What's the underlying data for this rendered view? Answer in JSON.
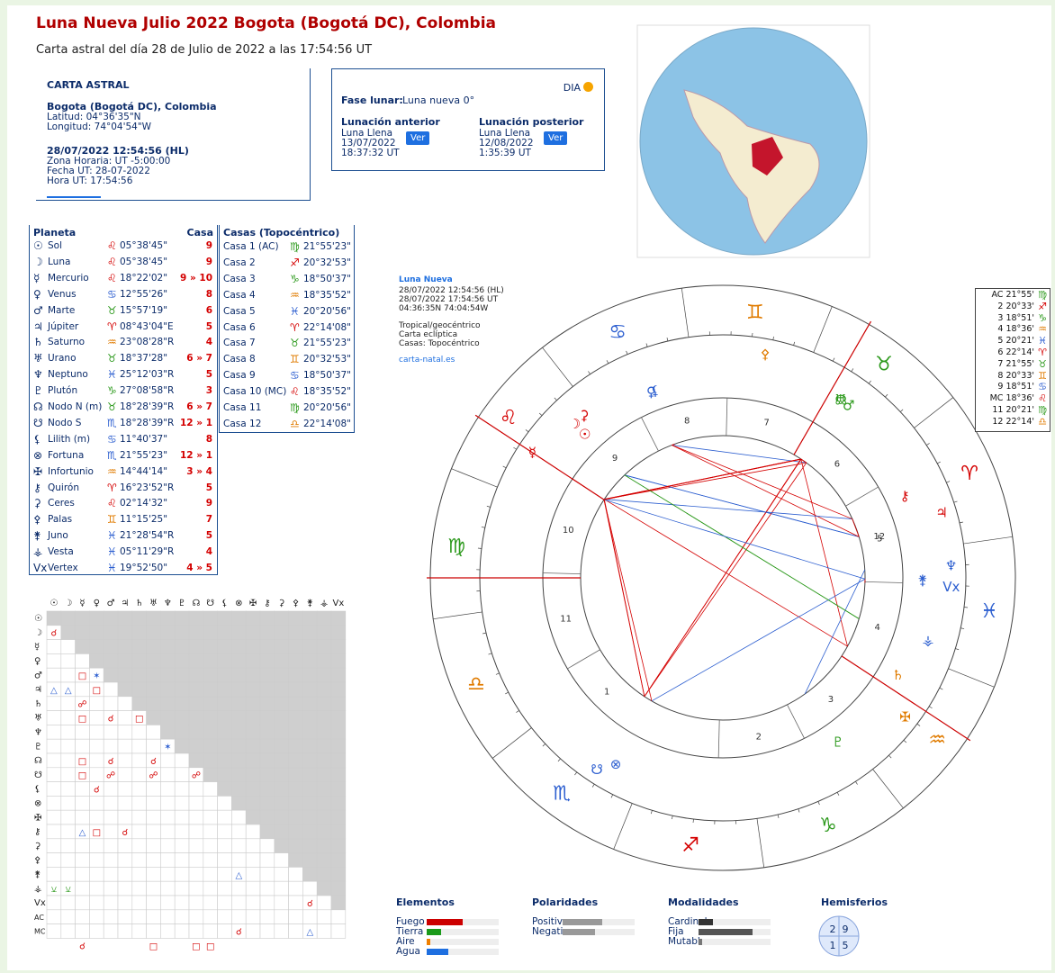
{
  "header": {
    "title": "Luna Nueva Julio 2022 Bogota (Bogotá DC), Colombia",
    "subtitle": "Carta astral del día 28 de Julio de 2022 a las 17:54:56 UT"
  },
  "carta": {
    "heading": "CARTA ASTRAL",
    "place": "Bogota (Bogotá DC), Colombia",
    "coords": [
      "Latitud: 04°36'35\"N",
      "Longitud: 74°04'54\"W"
    ],
    "datetime": "28/07/2022 12:54:56 (HL)",
    "details": [
      "Zona Horaria: UT -5:00:00",
      "Fecha UT: 28-07-2022",
      "Hora UT: 17:54:56"
    ]
  },
  "fase": {
    "day": "DIA",
    "label": "Fase lunar:",
    "value": "Luna nueva 0°",
    "anterior": {
      "title": "Lunación anterior",
      "lines": [
        "Luna Llena",
        "13/07/2022",
        "18:37:32 UT"
      ],
      "button": "Ver"
    },
    "posterior": {
      "title": "Lunación posterior",
      "lines": [
        "Luna Llena",
        "12/08/2022",
        "1:35:39 UT"
      ],
      "button": "Ver"
    }
  },
  "zodiac": [
    {
      "glyph": "♈",
      "color": "#d40000"
    },
    {
      "glyph": "♉",
      "color": "#2e9a1e"
    },
    {
      "glyph": "♊",
      "color": "#e07b00"
    },
    {
      "glyph": "♋",
      "color": "#2d5fd0"
    },
    {
      "glyph": "♌",
      "color": "#d40000"
    },
    {
      "glyph": "♍",
      "color": "#2e9a1e"
    },
    {
      "glyph": "♎",
      "color": "#e07b00"
    },
    {
      "glyph": "♏",
      "color": "#2d5fd0"
    },
    {
      "glyph": "♐",
      "color": "#d40000"
    },
    {
      "glyph": "♑",
      "color": "#2e9a1e"
    },
    {
      "glyph": "♒",
      "color": "#e07b00"
    },
    {
      "glyph": "♓",
      "color": "#2d5fd0"
    }
  ],
  "planets": {
    "headers": [
      "Planeta",
      "Casa"
    ],
    "rows": [
      {
        "glyph": "☉",
        "name": "Sol",
        "sign": "♌",
        "pos": "05°38'45\"",
        "casa": "9"
      },
      {
        "glyph": "☽",
        "name": "Luna",
        "sign": "♌",
        "pos": "05°38'45\"",
        "casa": "9"
      },
      {
        "glyph": "☿",
        "name": "Mercurio",
        "sign": "♌",
        "pos": "18°22'02\"",
        "casa": "9 » 10"
      },
      {
        "glyph": "♀",
        "name": "Venus",
        "sign": "♋",
        "pos": "12°55'26\"",
        "casa": "8"
      },
      {
        "glyph": "♂",
        "name": "Marte",
        "sign": "♉",
        "pos": "15°57'19\"",
        "casa": "6"
      },
      {
        "glyph": "♃",
        "name": "Júpiter",
        "sign": "♈",
        "pos": "08°43'04\"E",
        "casa": "5"
      },
      {
        "glyph": "♄",
        "name": "Saturno",
        "sign": "♒",
        "pos": "23°08'28\"R",
        "casa": "4"
      },
      {
        "glyph": "♅",
        "name": "Urano",
        "sign": "♉",
        "pos": "18°37'28\"",
        "casa": "6 » 7"
      },
      {
        "glyph": "♆",
        "name": "Neptuno",
        "sign": "♓",
        "pos": "25°12'03\"R",
        "casa": "5"
      },
      {
        "glyph": "♇",
        "name": "Plutón",
        "sign": "♑",
        "pos": "27°08'58\"R",
        "casa": "3"
      },
      {
        "glyph": "☊",
        "name": "Nodo N (m)",
        "sign": "♉",
        "pos": "18°28'39\"R",
        "casa": "6 » 7"
      },
      {
        "glyph": "☋",
        "name": "Nodo S",
        "sign": "♏",
        "pos": "18°28'39\"R",
        "casa": "12 » 1"
      },
      {
        "glyph": "⚸",
        "name": "Lilith (m)",
        "sign": "♋",
        "pos": "11°40'37\"",
        "casa": "8"
      },
      {
        "glyph": "⊗",
        "name": "Fortuna",
        "sign": "♏",
        "pos": "21°55'23\"",
        "casa": "12 » 1"
      },
      {
        "glyph": "✠",
        "name": "Infortunio",
        "sign": "♒",
        "pos": "14°44'14\"",
        "casa": "3 » 4"
      },
      {
        "glyph": "⚷",
        "name": "Quirón",
        "sign": "♈",
        "pos": "16°23'52\"R",
        "casa": "5"
      },
      {
        "glyph": "⚳",
        "name": "Ceres",
        "sign": "♌",
        "pos": "02°14'32\"",
        "casa": "9"
      },
      {
        "glyph": "⚴",
        "name": "Palas",
        "sign": "♊",
        "pos": "11°15'25\"",
        "casa": "7"
      },
      {
        "glyph": "⚵",
        "name": "Juno",
        "sign": "♓",
        "pos": "21°28'54\"R",
        "casa": "5"
      },
      {
        "glyph": "⚶",
        "name": "Vesta",
        "sign": "♓",
        "pos": "05°11'29\"R",
        "casa": "4"
      },
      {
        "glyph": "Vx",
        "name": "Vertex",
        "sign": "♓",
        "pos": "19°52'50\"",
        "casa": "4 » 5"
      }
    ]
  },
  "houses": {
    "heading": "Casas (Topocéntrico)",
    "rows": [
      {
        "name": "Casa 1 (AC)",
        "sign": "♍",
        "pos": "21°55'23\""
      },
      {
        "name": "Casa 2",
        "sign": "♐",
        "pos": "20°32'53\""
      },
      {
        "name": "Casa 3",
        "sign": "♑",
        "pos": "18°50'37\""
      },
      {
        "name": "Casa 4",
        "sign": "♒",
        "pos": "18°35'52\""
      },
      {
        "name": "Casa 5",
        "sign": "♓",
        "pos": "20°20'56\""
      },
      {
        "name": "Casa 6",
        "sign": "♈",
        "pos": "22°14'08\""
      },
      {
        "name": "Casa 7",
        "sign": "♉",
        "pos": "21°55'23\""
      },
      {
        "name": "Casa 8",
        "sign": "♊",
        "pos": "20°32'53\""
      },
      {
        "name": "Casa 9",
        "sign": "♋",
        "pos": "18°50'37\""
      },
      {
        "name": "Casa 10 (MC)",
        "sign": "♌",
        "pos": "18°35'52\""
      },
      {
        "name": "Casa 11",
        "sign": "♍",
        "pos": "20°20'56\""
      },
      {
        "name": "Casa 12",
        "sign": "♎",
        "pos": "22°14'08\""
      }
    ]
  },
  "chart_info": {
    "title": "Luna Nueva",
    "lines": [
      "28/07/2022 12:54:56 (HL)",
      "28/07/2022 17:54:56 UT",
      "04:36:35N 74:04:54W"
    ],
    "lines2": [
      "Tropical/geocéntrico",
      "Carta eclíptica",
      "Casas: Topocéntrico"
    ],
    "link": "carta-natal.es"
  },
  "house_numbers": [
    1,
    2,
    3,
    4,
    5,
    6,
    7,
    8,
    9,
    10,
    11,
    12
  ],
  "cusp_list": [
    {
      "label": "AC 21°55'",
      "sign": "♍"
    },
    {
      "label": "2 20°33'",
      "sign": "♐"
    },
    {
      "label": "3 18°51'",
      "sign": "♑"
    },
    {
      "label": "4 18°36'",
      "sign": "♒"
    },
    {
      "label": "5 20°21'",
      "sign": "♓"
    },
    {
      "label": "6 22°14'",
      "sign": "♈"
    },
    {
      "label": "7 21°55'",
      "sign": "♉"
    },
    {
      "label": "8 20°33'",
      "sign": "♊"
    },
    {
      "label": "9 18°51'",
      "sign": "♋"
    },
    {
      "label": "MC 18°36'",
      "sign": "♌"
    },
    {
      "label": "11 20°21'",
      "sign": "♍"
    },
    {
      "label": "12 22°14'",
      "sign": "♎"
    }
  ],
  "aspects": {
    "extra_rows": [
      "AC",
      "MC"
    ],
    "cells": [
      {
        "row": 1,
        "col": 0,
        "symbol": "☌",
        "color": "#d40000"
      },
      {
        "row": 4,
        "col": 2,
        "symbol": "□",
        "color": "#d40000"
      },
      {
        "row": 4,
        "col": 3,
        "symbol": "✶",
        "color": "#2d5fd0"
      },
      {
        "row": 5,
        "col": 0,
        "symbol": "△",
        "color": "#2d5fd0"
      },
      {
        "row": 5,
        "col": 1,
        "symbol": "△",
        "color": "#2d5fd0"
      },
      {
        "row": 5,
        "col": 3,
        "symbol": "□",
        "color": "#d40000"
      },
      {
        "row": 6,
        "col": 2,
        "symbol": "☍",
        "color": "#d40000"
      },
      {
        "row": 7,
        "col": 2,
        "symbol": "□",
        "color": "#d40000"
      },
      {
        "row": 7,
        "col": 4,
        "symbol": "☌",
        "color": "#d40000"
      },
      {
        "row": 7,
        "col": 6,
        "symbol": "□",
        "color": "#d40000"
      },
      {
        "row": 9,
        "col": 8,
        "symbol": "✶",
        "color": "#2d5fd0"
      },
      {
        "row": 10,
        "col": 2,
        "symbol": "□",
        "color": "#d40000"
      },
      {
        "row": 10,
        "col": 4,
        "symbol": "☌",
        "color": "#d40000"
      },
      {
        "row": 10,
        "col": 7,
        "symbol": "☌",
        "color": "#d40000"
      },
      {
        "row": 11,
        "col": 2,
        "symbol": "□",
        "color": "#d40000"
      },
      {
        "row": 11,
        "col": 4,
        "symbol": "☍",
        "color": "#d40000"
      },
      {
        "row": 11,
        "col": 7,
        "symbol": "☍",
        "color": "#d40000"
      },
      {
        "row": 11,
        "col": 10,
        "symbol": "☍",
        "color": "#d40000"
      },
      {
        "row": 12,
        "col": 3,
        "symbol": "☌",
        "color": "#d40000"
      },
      {
        "row": 15,
        "col": 2,
        "symbol": "△",
        "color": "#2d5fd0"
      },
      {
        "row": 15,
        "col": 3,
        "symbol": "□",
        "color": "#d40000"
      },
      {
        "row": 15,
        "col": 5,
        "symbol": "☌",
        "color": "#d40000"
      },
      {
        "row": 18,
        "col": 13,
        "symbol": "△",
        "color": "#2d5fd0"
      },
      {
        "row": 19,
        "col": 0,
        "symbol": "⚺",
        "color": "#2e9a1e"
      },
      {
        "row": 19,
        "col": 1,
        "symbol": "⚺",
        "color": "#2e9a1e"
      },
      {
        "row": 20,
        "col": 18,
        "symbol": "☌",
        "color": "#d40000"
      },
      {
        "row": 22,
        "col": 13,
        "symbol": "☌",
        "color": "#d40000"
      },
      {
        "row": 22,
        "col": 18,
        "symbol": "△",
        "color": "#2d5fd0"
      },
      {
        "row": 23,
        "col": 2,
        "symbol": "☌",
        "color": "#d40000"
      },
      {
        "row": 23,
        "col": 7,
        "symbol": "□",
        "color": "#d40000"
      },
      {
        "row": 23,
        "col": 10,
        "symbol": "□",
        "color": "#d40000"
      },
      {
        "row": 23,
        "col": 11,
        "symbol": "□",
        "color": "#d40000"
      }
    ]
  },
  "summary": {
    "xlim": [
      0,
      20
    ],
    "groups": [
      {
        "title": "Elementos",
        "items": [
          {
            "name": "Fuego",
            "value": 10,
            "color": "#cc0000"
          },
          {
            "name": "Tierra",
            "value": 4,
            "color": "#1a9a1a"
          },
          {
            "name": "Aire",
            "value": 1,
            "color": "#f08000"
          },
          {
            "name": "Agua",
            "value": 6,
            "color": "#1e6fe0"
          }
        ]
      },
      {
        "title": "Polaridades",
        "items": [
          {
            "name": "Positiva",
            "value": 11,
            "color": "#999999"
          },
          {
            "name": "Negativa",
            "value": 9,
            "color": "#999999"
          }
        ]
      },
      {
        "title": "Modalidades",
        "items": [
          {
            "name": "Cardinal",
            "value": 4,
            "color": "#333333"
          },
          {
            "name": "Fija",
            "value": 15,
            "color": "#555555"
          },
          {
            "name": "Mutable",
            "value": 1,
            "color": "#777777"
          }
        ]
      }
    ],
    "hemisferios": {
      "title": "Hemisferios",
      "cells": [
        [
          2,
          9
        ],
        [
          1,
          5
        ]
      ]
    }
  }
}
